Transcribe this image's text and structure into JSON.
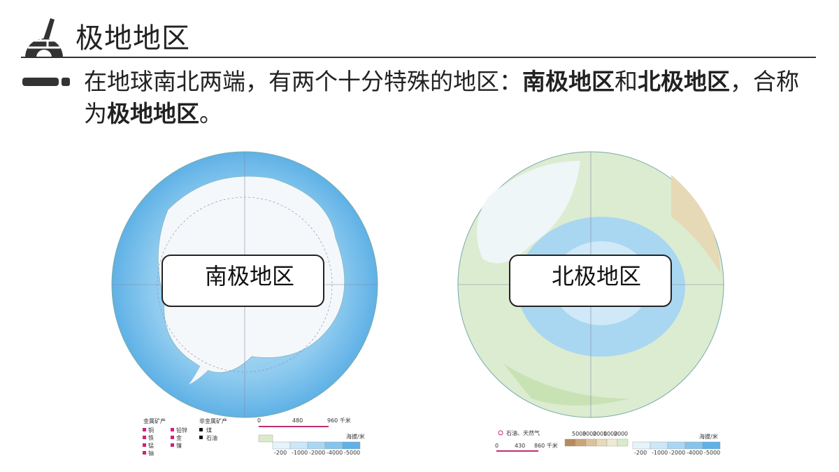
{
  "header": {
    "title": "极地地区"
  },
  "intro": {
    "segments": [
      {
        "text": "在地球南北两端，有两个十分特殊的地区：",
        "bold": false
      },
      {
        "text": "南极地区",
        "bold": true
      },
      {
        "text": "和",
        "bold": false
      },
      {
        "text": "北极地区",
        "bold": true
      },
      {
        "text": "，合称为",
        "bold": false
      },
      {
        "text": "极地地区",
        "bold": true
      },
      {
        "text": "。",
        "bold": false
      }
    ]
  },
  "maps": [
    {
      "label": "南极地区",
      "legend": {
        "metal_title": "金属矿产",
        "metal_items": [
          "铜",
          "铁",
          "锰",
          "铀",
          "铅锌",
          "金",
          "镍"
        ],
        "nonmetal_title": "非金属矿产",
        "nonmetal_items": [
          "煤",
          "石油"
        ],
        "scale": [
          "0",
          "480",
          "960 千米"
        ],
        "elevation": "海拔/米",
        "depths": [
          "-200",
          "-1000",
          "-2000",
          "-4000",
          "-5000"
        ]
      }
    },
    {
      "label": "北极地区",
      "legend": {
        "resource": "石油、天然气",
        "scale": [
          "0",
          "430",
          "860 千米"
        ],
        "elevation": "海拔/米",
        "heights": [
          "5000",
          "3000",
          "2000",
          "1000",
          "200",
          "0"
        ],
        "depths": [
          "-200",
          "-1000",
          "-2000",
          "-4000",
          "-5000"
        ]
      }
    }
  ]
}
